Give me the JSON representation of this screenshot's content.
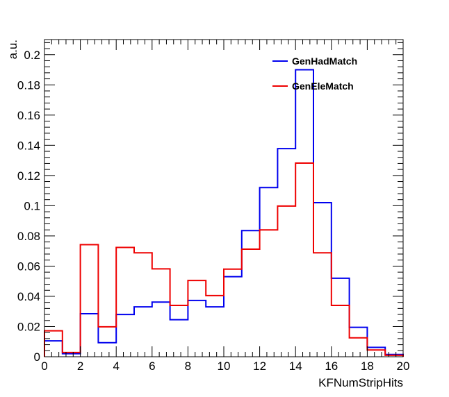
{
  "chart_data": {
    "type": "step-histogram",
    "title": "",
    "xlabel": "KFNumStripHits",
    "ylabel": "a.u.",
    "xlim": [
      0,
      20
    ],
    "ylim": [
      0,
      0.21
    ],
    "bin_edges": [
      0,
      1,
      2,
      3,
      4,
      5,
      6,
      7,
      8,
      9,
      10,
      11,
      12,
      13,
      14,
      15,
      16,
      17,
      18,
      19,
      20
    ],
    "x_ticks": [
      {
        "value": 0,
        "label": "0"
      },
      {
        "value": 2,
        "label": "2"
      },
      {
        "value": 4,
        "label": "4"
      },
      {
        "value": 6,
        "label": "6"
      },
      {
        "value": 8,
        "label": "8"
      },
      {
        "value": 10,
        "label": "10"
      },
      {
        "value": 12,
        "label": "12"
      },
      {
        "value": 14,
        "label": "14"
      },
      {
        "value": 16,
        "label": "16"
      },
      {
        "value": 18,
        "label": "18"
      },
      {
        "value": 20,
        "label": "20"
      }
    ],
    "y_ticks": [
      {
        "value": 0,
        "label": "0"
      },
      {
        "value": 0.02,
        "label": "0.02"
      },
      {
        "value": 0.04,
        "label": "0.04"
      },
      {
        "value": 0.06,
        "label": "0.06"
      },
      {
        "value": 0.08,
        "label": "0.08"
      },
      {
        "value": 0.1,
        "label": "0.1"
      },
      {
        "value": 0.12,
        "label": "0.12"
      },
      {
        "value": 0.14,
        "label": "0.14"
      },
      {
        "value": 0.16,
        "label": "0.16"
      },
      {
        "value": 0.18,
        "label": "0.18"
      },
      {
        "value": 0.2,
        "label": "0.2"
      }
    ],
    "grid": false,
    "legend_position": "top-right",
    "series": [
      {
        "name": "GenHadMatch",
        "color": "#0000ee",
        "values": [
          0.0105,
          0.002,
          0.0285,
          0.0093,
          0.028,
          0.033,
          0.0362,
          0.0245,
          0.0373,
          0.033,
          0.053,
          0.0835,
          0.112,
          0.1378,
          0.19,
          0.102,
          0.052,
          0.0195,
          0.0062,
          0.0015
        ]
      },
      {
        "name": "GenEleMatch",
        "color": "#ee0000",
        "values": [
          0.0172,
          0.0028,
          0.0742,
          0.0198,
          0.0724,
          0.0688,
          0.0582,
          0.034,
          0.0505,
          0.0405,
          0.058,
          0.0712,
          0.084,
          0.0998,
          0.1282,
          0.0688,
          0.034,
          0.0125,
          0.0045,
          0.001
        ]
      }
    ]
  }
}
